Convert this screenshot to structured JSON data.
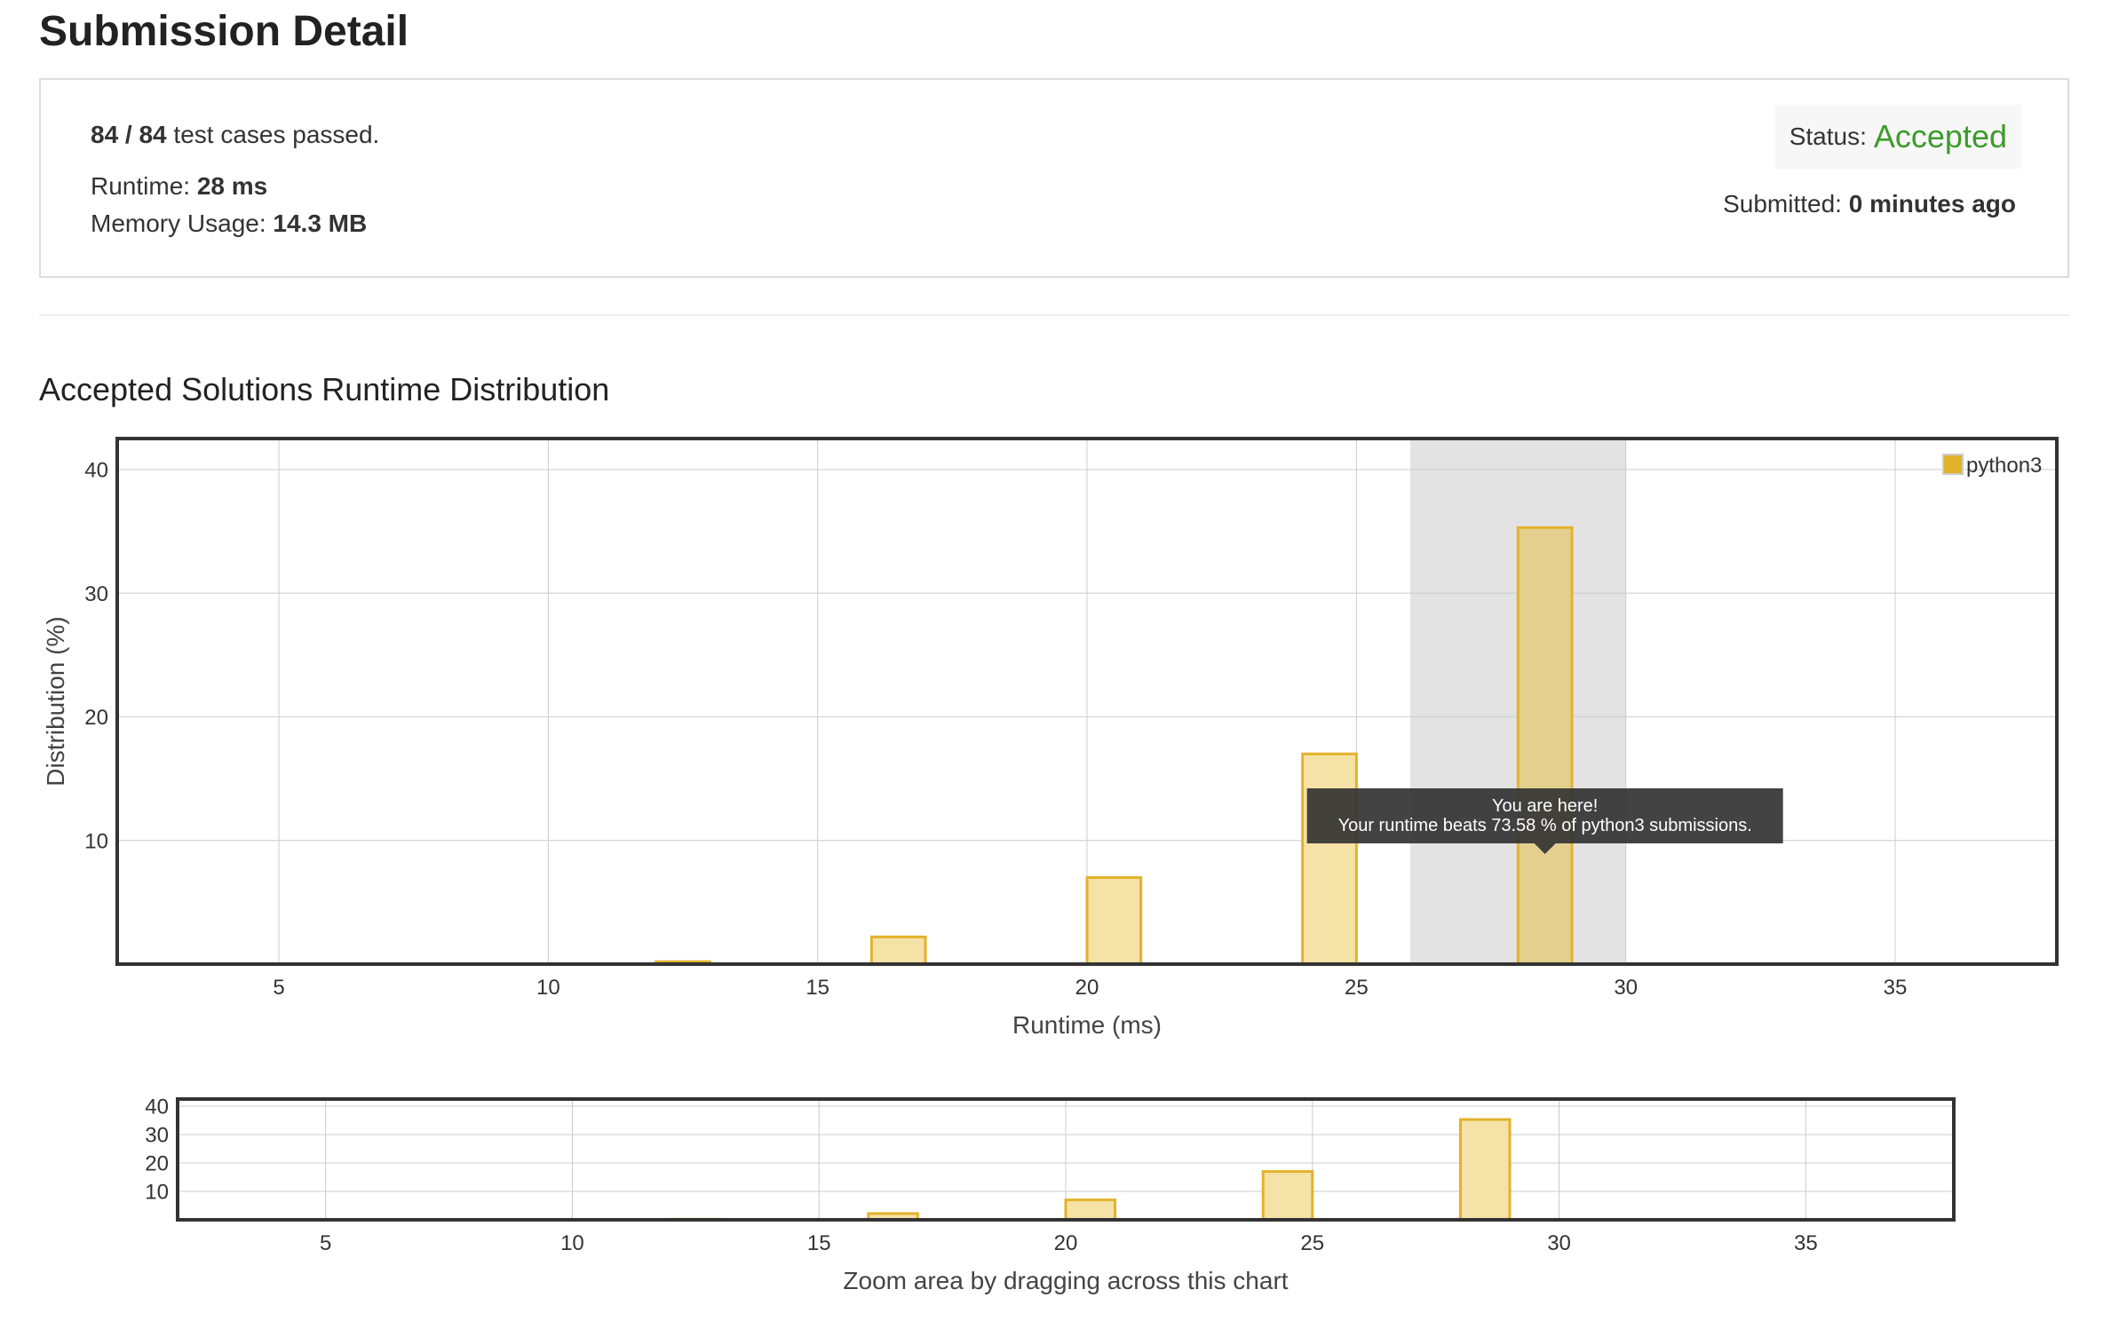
{
  "header": {
    "title": "Submission Detail"
  },
  "result": {
    "tests_passed": "84 / 84",
    "tests_suffix": "test cases passed.",
    "runtime_label": "Runtime:",
    "runtime_value": "28 ms",
    "memory_label": "Memory Usage:",
    "memory_value": "14.3 MB",
    "status_label": "Status:",
    "status_value": "Accepted",
    "submitted_label": "Submitted:",
    "submitted_value": "0 minutes ago"
  },
  "section": {
    "title": "Accepted Solutions Runtime Distribution"
  },
  "colors": {
    "bar_fill": "#f5e2a6",
    "bar_stroke": "#e3b22b",
    "bar_highlight_fill": "#e3d08f",
    "highlight_band": "#e3e3e3",
    "legend_swatch": "#e3b22b",
    "tooltip_bg": "#333333",
    "accepted": "#3c9b2b"
  },
  "chart_data": [
    {
      "type": "bar",
      "xlabel": "Runtime (ms)",
      "ylabel": "Distribution (%)",
      "xlim": [
        2,
        38
      ],
      "ylim": [
        0,
        42.5
      ],
      "xticks": [
        5,
        10,
        15,
        20,
        25,
        30,
        35
      ],
      "yticks": [
        10,
        20,
        30,
        40
      ],
      "grid": true,
      "legend": "top-right",
      "series": [
        {
          "name": "python3",
          "bins": [
            {
              "x0": 12,
              "x1": 13,
              "value": 0.2
            },
            {
              "x0": 16,
              "x1": 17,
              "value": 2.2
            },
            {
              "x0": 20,
              "x1": 21,
              "value": 7.0
            },
            {
              "x0": 24,
              "x1": 25,
              "value": 17.0
            },
            {
              "x0": 28,
              "x1": 29,
              "value": 35.3
            }
          ]
        }
      ],
      "highlight_range": [
        26,
        30
      ],
      "highlight_bin": 4,
      "tooltip": {
        "title": "You are here!",
        "text": "Your runtime beats 73.58 % of python3 submissions."
      }
    },
    {
      "type": "bar",
      "xlim": [
        2,
        38
      ],
      "ylim": [
        0,
        42.5
      ],
      "xticks": [
        5,
        10,
        15,
        20,
        25,
        30,
        35
      ],
      "yticks": [
        10,
        20,
        30,
        40
      ],
      "grid": true,
      "series": [
        {
          "name": "python3",
          "bins": [
            {
              "x0": 12,
              "x1": 13,
              "value": 0.2
            },
            {
              "x0": 16,
              "x1": 17,
              "value": 2.2
            },
            {
              "x0": 20,
              "x1": 21,
              "value": 7.0
            },
            {
              "x0": 24,
              "x1": 25,
              "value": 17.0
            },
            {
              "x0": 28,
              "x1": 29,
              "value": 35.3
            }
          ]
        }
      ],
      "caption": "Zoom area by dragging across this chart"
    }
  ]
}
